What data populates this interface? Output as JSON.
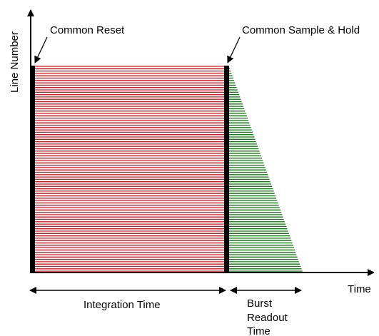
{
  "diagram": {
    "y_axis_label": "Line Number",
    "x_axis_label": "Time",
    "reset_label": "Common Reset",
    "sample_hold_label": "Common Sample & Hold",
    "integration_label": "Integration Time",
    "burst_readout_label_line1": "Burst",
    "burst_readout_label_line2": "Readout",
    "burst_readout_label_line3": "Time"
  },
  "colors": {
    "integration_lines": "#e0101a",
    "readout_lines": "#0a7a0a",
    "bars": "#000000",
    "background": "#ffffff"
  }
}
